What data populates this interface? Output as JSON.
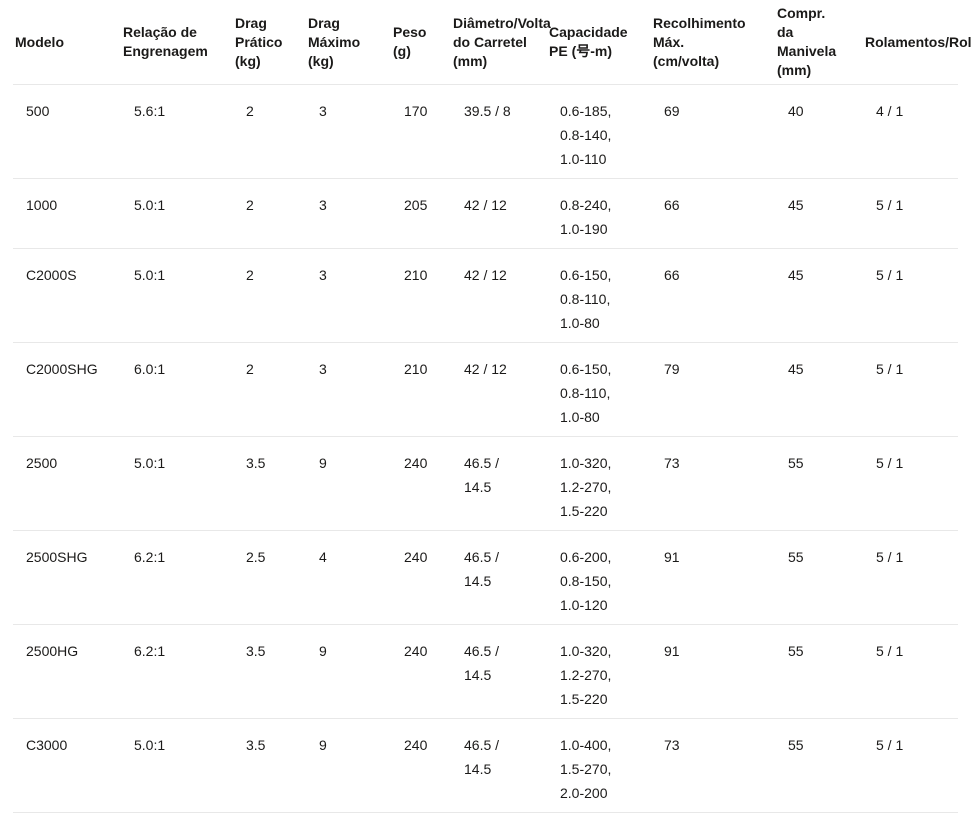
{
  "colors": {
    "background": "#ffffff",
    "text": "#1b1a19",
    "row_divider": "#e8e8e8"
  },
  "table": {
    "columns": [
      {
        "key": "modelo",
        "label": "Modelo"
      },
      {
        "key": "relacao",
        "label": "Relação de Engrenagem"
      },
      {
        "key": "drag_pratico",
        "label": "Drag Prático (kg)"
      },
      {
        "key": "drag_maximo",
        "label": "Drag Máximo (kg)"
      },
      {
        "key": "peso",
        "label": "Peso (g)"
      },
      {
        "key": "diametro",
        "label": "Diâmetro/Volta do Carretel (mm)"
      },
      {
        "key": "capacidade_pe",
        "label": "Capacidade PE (号-m)"
      },
      {
        "key": "recolhimento",
        "label": "Recolhimento Máx. (cm/volta)"
      },
      {
        "key": "manivela",
        "label": "Compr. da Manivela (mm)"
      },
      {
        "key": "rolamentos",
        "label": "Rolamentos/Rolos"
      }
    ],
    "rows": [
      {
        "modelo": "500",
        "relacao": "5.6:1",
        "drag_pratico": "2",
        "drag_maximo": "3",
        "peso": "170",
        "diametro": "39.5 / 8",
        "capacidade_pe": "0.6-185,\n0.8-140,\n1.0-110",
        "recolhimento": "69",
        "manivela": "40",
        "rolamentos": "4 / 1"
      },
      {
        "modelo": "1000",
        "relacao": "5.0:1",
        "drag_pratico": "2",
        "drag_maximo": "3",
        "peso": "205",
        "diametro": "42 / 12",
        "capacidade_pe": "0.8-240,\n1.0-190",
        "recolhimento": "66",
        "manivela": "45",
        "rolamentos": "5 / 1"
      },
      {
        "modelo": "C2000S",
        "relacao": "5.0:1",
        "drag_pratico": "2",
        "drag_maximo": "3",
        "peso": "210",
        "diametro": "42 / 12",
        "capacidade_pe": "0.6-150,\n0.8-110,\n1.0-80",
        "recolhimento": "66",
        "manivela": "45",
        "rolamentos": "5 / 1"
      },
      {
        "modelo": "C2000SHG",
        "relacao": "6.0:1",
        "drag_pratico": "2",
        "drag_maximo": "3",
        "peso": "210",
        "diametro": "42 / 12",
        "capacidade_pe": "0.6-150,\n0.8-110,\n1.0-80",
        "recolhimento": "79",
        "manivela": "45",
        "rolamentos": "5 / 1"
      },
      {
        "modelo": "2500",
        "relacao": "5.0:1",
        "drag_pratico": "3.5",
        "drag_maximo": "9",
        "peso": "240",
        "diametro": "46.5 /\n14.5",
        "capacidade_pe": "1.0-320,\n1.2-270,\n1.5-220",
        "recolhimento": "73",
        "manivela": "55",
        "rolamentos": "5 / 1"
      },
      {
        "modelo": "2500SHG",
        "relacao": "6.2:1",
        "drag_pratico": "2.5",
        "drag_maximo": "4",
        "peso": "240",
        "diametro": "46.5 /\n14.5",
        "capacidade_pe": "0.6-200,\n0.8-150,\n1.0-120",
        "recolhimento": "91",
        "manivela": "55",
        "rolamentos": "5 / 1"
      },
      {
        "modelo": "2500HG",
        "relacao": "6.2:1",
        "drag_pratico": "3.5",
        "drag_maximo": "9",
        "peso": "240",
        "diametro": "46.5 /\n14.5",
        "capacidade_pe": "1.0-320,\n1.2-270,\n1.5-220",
        "recolhimento": "91",
        "manivela": "55",
        "rolamentos": "5 / 1"
      },
      {
        "modelo": "C3000",
        "relacao": "5.0:1",
        "drag_pratico": "3.5",
        "drag_maximo": "9",
        "peso": "240",
        "diametro": "46.5 /\n14.5",
        "capacidade_pe": "1.0-400,\n1.5-270,\n2.0-200",
        "recolhimento": "73",
        "manivela": "55",
        "rolamentos": "5 / 1"
      }
    ]
  }
}
